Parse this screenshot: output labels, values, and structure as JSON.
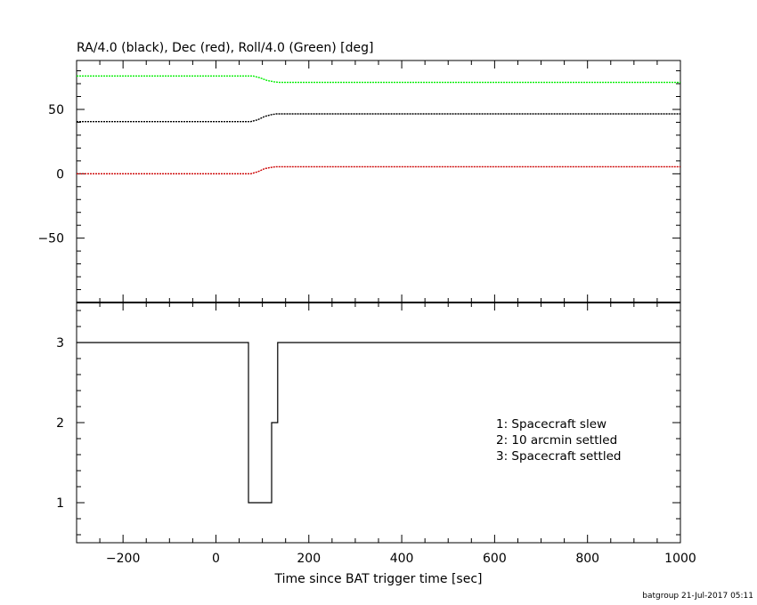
{
  "chart_data": [
    {
      "type": "line",
      "title": "RA/4.0 (black), Dec (red), Roll/4.0 (Green) [deg]",
      "xlim": [
        -300,
        1000
      ],
      "ylim": [
        -100,
        88
      ],
      "yticks": [
        50,
        0,
        -50
      ],
      "ytick_labels": [
        "50",
        "0",
        "−50"
      ],
      "grid": false,
      "series": [
        {
          "color": "#000000",
          "x": [
            -300,
            75,
            90,
            105,
            120,
            130,
            1000
          ],
          "y": [
            40.5,
            40.5,
            42,
            44.5,
            46,
            46.5,
            46.5
          ]
        },
        {
          "color": "#cc0000",
          "x": [
            -300,
            75,
            90,
            105,
            120,
            130,
            1000
          ],
          "y": [
            0,
            0,
            1.5,
            4,
            5,
            5.5,
            5.5
          ]
        },
        {
          "color": "#00ee00",
          "x": [
            -300,
            80,
            95,
            110,
            125,
            135,
            1000
          ],
          "y": [
            76,
            76,
            74.5,
            72.5,
            71.5,
            71,
            71
          ]
        }
      ]
    },
    {
      "type": "line",
      "step": true,
      "xlim": [
        -300,
        1000
      ],
      "ylim": [
        0.5,
        3.5
      ],
      "yticks": [
        3,
        2,
        1
      ],
      "ytick_labels": [
        "3",
        "2",
        "1"
      ],
      "grid": false,
      "series": [
        {
          "color": "#000000",
          "x": [
            -300,
            70,
            70,
            120,
            120,
            133,
            133,
            1000
          ],
          "y": [
            3,
            3,
            1,
            1,
            2,
            2,
            3,
            3
          ]
        }
      ],
      "annotations": [
        "1: Spacecraft slew",
        "2: 10 arcmin settled",
        "3: Spacecraft settled"
      ],
      "xticks": [
        -200,
        0,
        200,
        400,
        600,
        800,
        1000
      ],
      "xtick_labels": [
        "−200",
        "0",
        "200",
        "400",
        "600",
        "800",
        "1000"
      ],
      "xlabel": "Time since BAT trigger time [sec]"
    }
  ],
  "footer": "batgroup 21-Jul-2017 05:11"
}
